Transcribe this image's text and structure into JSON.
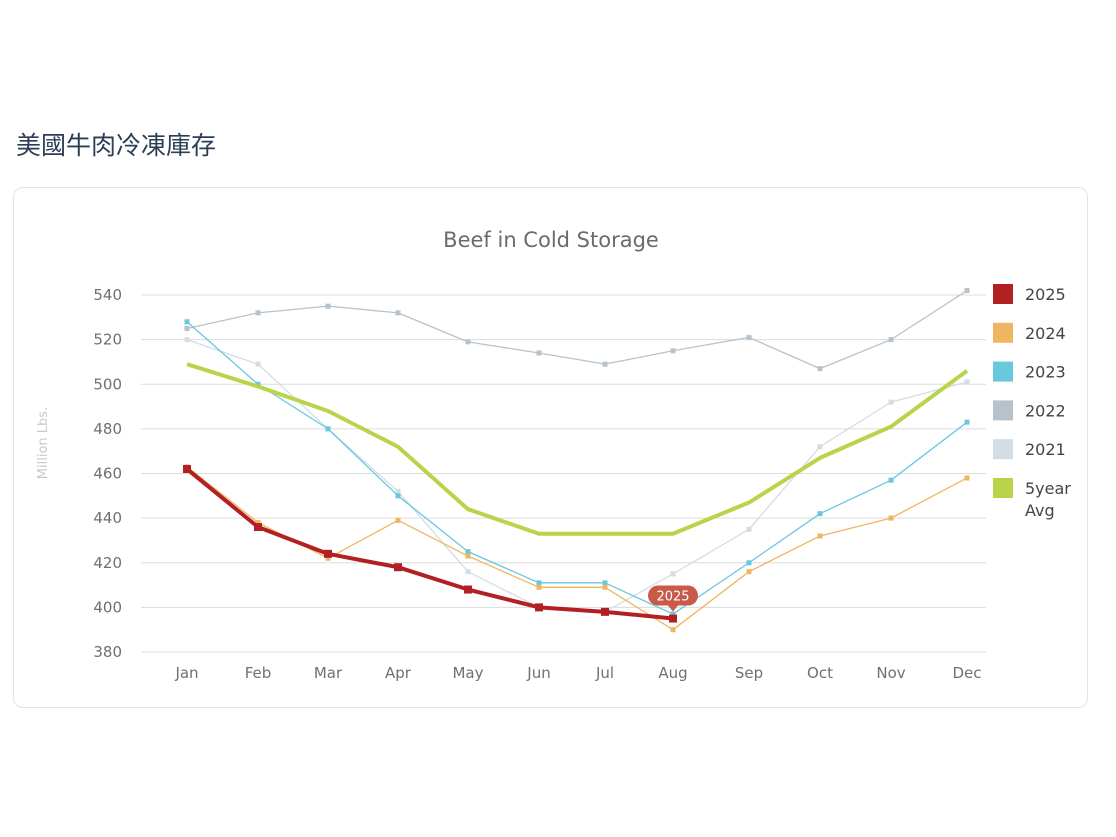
{
  "page": {
    "heading": "美國牛肉冷凍庫存"
  },
  "chart_data": {
    "type": "line",
    "title": "Beef in Cold Storage",
    "xlabel": "",
    "ylabel": "Million Lbs.",
    "ylim": [
      380,
      540
    ],
    "yticks": [
      540,
      520,
      500,
      480,
      460,
      440,
      420,
      400,
      380
    ],
    "grid": true,
    "legend_position": "right",
    "categories": [
      "Jan",
      "Feb",
      "Mar",
      "Apr",
      "May",
      "Jun",
      "Jul",
      "Aug",
      "Sep",
      "Oct",
      "Nov",
      "Dec"
    ],
    "tooltip": {
      "label": "2025",
      "series": "2025",
      "category": "Aug"
    },
    "series": [
      {
        "name": "2021",
        "color": "#d3dde5",
        "values": [
          520,
          509,
          480,
          452,
          416,
          400,
          398,
          415,
          435,
          472,
          492,
          501
        ]
      },
      {
        "name": "2022",
        "color": "#b7c3cc",
        "values": [
          525,
          532,
          535,
          532,
          519,
          514,
          509,
          515,
          521,
          507,
          520,
          542
        ]
      },
      {
        "name": "2023",
        "color": "#6ac8de",
        "values": [
          528,
          500,
          480,
          450,
          425,
          411,
          411,
          397,
          420,
          442,
          457,
          483
        ]
      },
      {
        "name": "2024",
        "color": "#f0b560",
        "values": [
          463,
          438,
          422,
          439,
          423,
          409,
          409,
          390,
          416,
          432,
          440,
          458
        ]
      },
      {
        "name": "5year Avg",
        "legend_lines": [
          "5year",
          "Avg"
        ],
        "color": "#b9d44a",
        "values": [
          509,
          499,
          488,
          472,
          444,
          433,
          433,
          433,
          447,
          467,
          481,
          506
        ]
      },
      {
        "name": "2025",
        "color": "#b22024",
        "values": [
          462,
          436,
          424,
          418,
          408,
          400,
          398,
          395,
          null,
          null,
          null,
          null
        ]
      }
    ]
  }
}
